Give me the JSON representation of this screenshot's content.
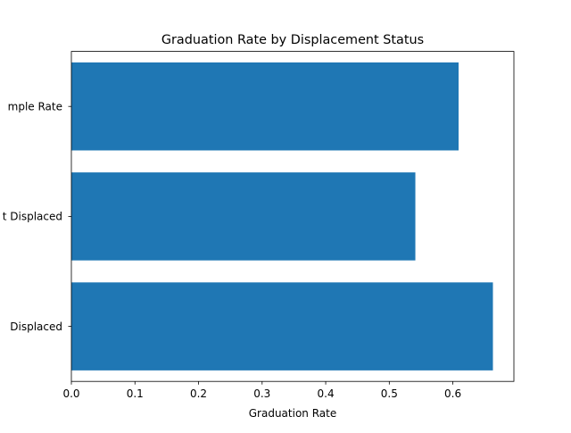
{
  "chart_data": {
    "type": "bar",
    "orientation": "horizontal",
    "title": "Graduation Rate by Displacement Status",
    "xlabel": "Graduation Rate",
    "ylabel": "",
    "categories": [
      "Displaced",
      "Not Displaced",
      "Sample Rate"
    ],
    "category_labels_as_shown": [
      "Displaced",
      "t Displaced",
      "mple Rate"
    ],
    "values": [
      0.663,
      0.541,
      0.609
    ],
    "xlim": [
      0,
      0.696
    ],
    "xticks": [
      0.0,
      0.1,
      0.2,
      0.3,
      0.4,
      0.5,
      0.6
    ],
    "xtick_labels": [
      "0.0",
      "0.1",
      "0.2",
      "0.3",
      "0.4",
      "0.5",
      "0.6"
    ],
    "bar_color": "#1f77b4",
    "grid": false,
    "legend": "none"
  }
}
